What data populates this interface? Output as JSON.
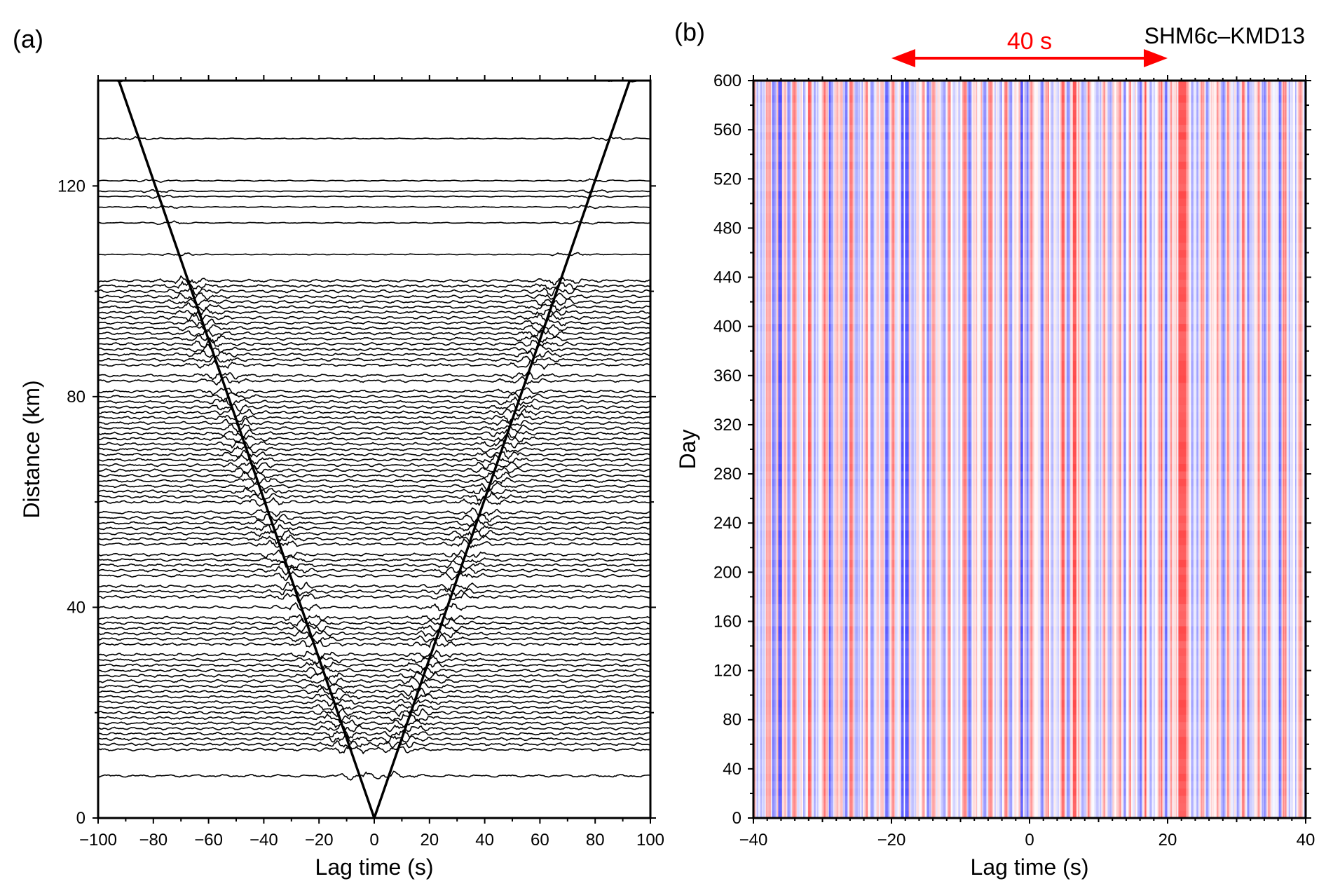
{
  "panel_a": {
    "label": "(a)",
    "chart_data": {
      "type": "line",
      "subtype": "wiggle-record-section",
      "xlabel": "Lag time (s)",
      "ylabel": "Distance (km)",
      "xlim": [
        -100,
        100
      ],
      "ylim": [
        0,
        140
      ],
      "xticks": [
        -100,
        -80,
        -60,
        -40,
        -20,
        0,
        20,
        40,
        60,
        80,
        100
      ],
      "yticks": [
        0,
        40,
        80,
        120
      ],
      "trace_color": "#000000",
      "trace_distances_km": [
        8,
        13,
        14,
        15,
        16,
        17,
        18,
        19,
        20,
        21,
        22,
        23,
        24,
        25,
        26,
        27,
        28,
        29,
        30,
        31,
        33,
        34,
        35,
        36,
        37,
        38,
        40,
        42,
        43,
        44,
        46,
        47,
        48,
        49,
        50,
        52,
        53,
        54,
        55,
        56,
        57,
        58,
        60,
        61,
        62,
        63,
        64,
        65,
        66,
        67,
        68,
        69,
        70,
        71,
        72,
        73,
        74,
        75,
        76,
        77,
        78,
        79,
        80,
        81,
        83,
        84,
        86,
        87,
        88,
        89,
        90,
        91,
        92,
        93,
        94,
        95,
        96,
        97,
        98,
        99,
        100,
        101,
        102,
        107,
        113,
        116,
        118,
        119,
        121,
        129,
        140
      ],
      "moveout_lines": [
        {
          "x": [
            0,
            -92.5
          ],
          "y": [
            0,
            140
          ]
        },
        {
          "x": [
            0,
            92.5
          ],
          "y": [
            0,
            140
          ]
        }
      ]
    }
  },
  "panel_b": {
    "label": "(b)",
    "station_pair": "SHM6c–KMD13",
    "annotation": {
      "text": "40 s",
      "x_from": -20,
      "x_to": 20,
      "color": "#ff0000"
    },
    "chart_data": {
      "type": "heatmap",
      "xlabel": "Lag time (s)",
      "ylabel": "Day",
      "xlim": [
        -40,
        40
      ],
      "ylim": [
        0,
        600
      ],
      "xticks": [
        -40,
        -20,
        0,
        20,
        40
      ],
      "yticks": [
        0,
        40,
        80,
        120,
        160,
        200,
        240,
        280,
        320,
        360,
        400,
        440,
        480,
        520,
        560,
        600
      ],
      "colormap": [
        "#0000ff",
        "#ffffff",
        "#ff0000"
      ]
    }
  }
}
